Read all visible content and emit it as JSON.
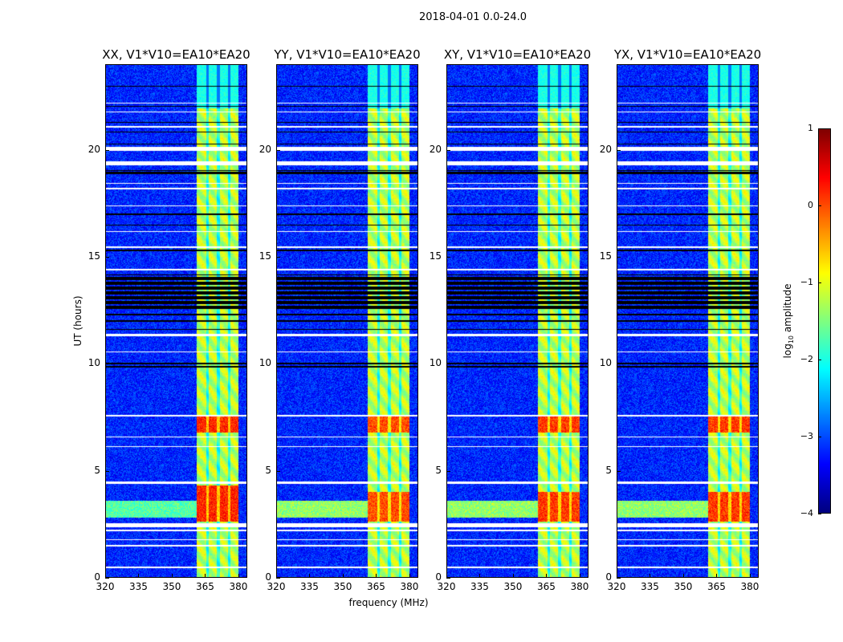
{
  "chart_data": {
    "type": "heatmap",
    "title": "2018-04-01 0.0-24.0",
    "xlabel": "frequency (MHz)",
    "ylabel": "UT (hours)",
    "xlim": [
      320,
      384
    ],
    "ylim": [
      0,
      24
    ],
    "xticks": [
      320,
      335,
      350,
      365,
      380
    ],
    "yticks": [
      0,
      5,
      10,
      15,
      20
    ],
    "panels": [
      {
        "title": "XX, V1*V10=EA10*EA20",
        "strong_rfi_hours": [
          [
            2.6,
            4.3
          ],
          [
            6.8,
            7.6
          ]
        ],
        "rfi_peak": 0.4
      },
      {
        "title": "YY, V1*V10=EA10*EA20",
        "strong_rfi_hours": [
          [
            2.6,
            4.0
          ],
          [
            6.8,
            7.6
          ]
        ],
        "rfi_peak": 0.2
      },
      {
        "title": "XY, V1*V10=EA10*EA20",
        "strong_rfi_hours": [
          [
            2.6,
            4.0
          ],
          [
            6.8,
            7.6
          ]
        ],
        "rfi_peak": 0.3
      },
      {
        "title": "YX, V1*V10=EA10*EA20",
        "strong_rfi_hours": [
          [
            2.6,
            4.0
          ],
          [
            6.8,
            7.6
          ]
        ],
        "rfi_peak": 0.3
      }
    ],
    "rfi_band_mhz": [
      361,
      380
    ],
    "rfi_subband_gaps_mhz": [
      366,
      371,
      376
    ],
    "background_level": -3.2,
    "band_level": -1.2,
    "flagged_white_hours": [
      [
        0.45,
        0.5
      ],
      [
        1.45,
        1.52
      ],
      [
        1.75,
        1.8
      ],
      [
        2.15,
        2.22
      ],
      [
        2.35,
        2.55
      ],
      [
        4.4,
        4.5
      ],
      [
        6.1,
        6.15
      ],
      [
        6.55,
        6.6
      ],
      [
        7.55,
        7.6
      ],
      [
        10.55,
        10.6
      ],
      [
        11.3,
        11.4
      ],
      [
        14.4,
        14.45
      ],
      [
        15.45,
        15.5
      ],
      [
        16.2,
        16.25
      ],
      [
        17.4,
        17.45
      ],
      [
        18.2,
        18.25
      ],
      [
        18.45,
        18.5
      ],
      [
        19.3,
        19.5
      ],
      [
        20.0,
        20.2
      ],
      [
        21.1,
        21.15
      ],
      [
        21.8,
        21.85
      ],
      [
        22.2,
        22.25
      ]
    ],
    "flagged_black_hours": [
      [
        9.85,
        9.9
      ],
      [
        10.0,
        10.05
      ],
      [
        11.6,
        11.65
      ],
      [
        12.0,
        12.05
      ],
      [
        12.3,
        12.35
      ],
      [
        12.5,
        14.2
      ],
      [
        15.3,
        15.35
      ],
      [
        16.5,
        16.55
      ],
      [
        17.0,
        17.05
      ],
      [
        18.9,
        19.0
      ],
      [
        19.05,
        19.1
      ],
      [
        20.3,
        20.35
      ],
      [
        20.85,
        20.9
      ],
      [
        21.3,
        21.35
      ],
      [
        22.05,
        22.1
      ],
      [
        23.0,
        23.05
      ]
    ],
    "colorbar": {
      "label": "log",
      "label_sub": "10",
      "label_rest": " amplitude",
      "range": [
        -4,
        1
      ],
      "ticks": [
        "1",
        "0",
        "−1",
        "−2",
        "−3",
        "−4"
      ],
      "tick_values": [
        1,
        0,
        -1,
        -2,
        -3,
        -4
      ],
      "colormap": "jet"
    }
  }
}
